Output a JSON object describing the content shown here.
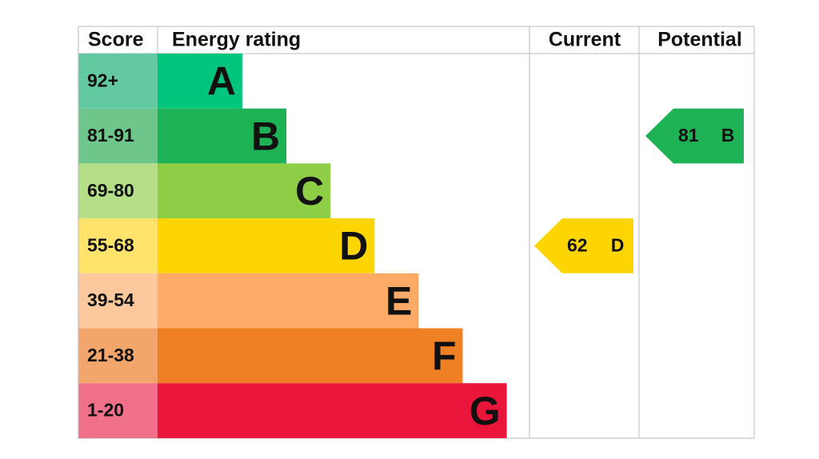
{
  "header": {
    "score": "Score",
    "rating": "Energy rating",
    "current": "Current",
    "potential": "Potential"
  },
  "bands": [
    {
      "score": "92+",
      "letter": "A"
    },
    {
      "score": "81-91",
      "letter": "B"
    },
    {
      "score": "69-80",
      "letter": "C"
    },
    {
      "score": "55-68",
      "letter": "D"
    },
    {
      "score": "39-54",
      "letter": "E"
    },
    {
      "score": "21-38",
      "letter": "F"
    },
    {
      "score": "1-20",
      "letter": "G"
    }
  ],
  "current": {
    "value": 62,
    "letter": "D"
  },
  "potential": {
    "value": 81,
    "letter": "B"
  }
}
